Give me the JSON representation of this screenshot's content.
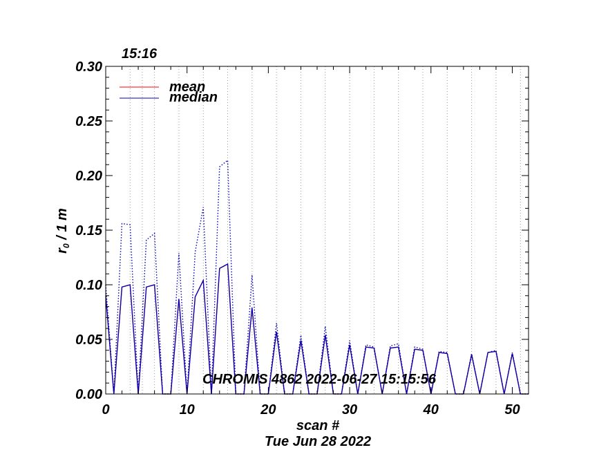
{
  "chart_data": {
    "type": "line",
    "corner_label": "15:16",
    "xlabel": "scan #",
    "date_label": "Tue Jun 28 2022",
    "ylabel_main": "r",
    "ylabel_sub": "0",
    "ylabel_rest": " / 1 m",
    "annotation": "CHROMIS 4862 2022-06-27 15:15:56",
    "xlim": [
      0,
      52
    ],
    "ylim": [
      0,
      0.3
    ],
    "xticks": [
      0,
      10,
      20,
      30,
      40,
      50
    ],
    "xtick_labels": [
      "0",
      "10",
      "20",
      "30",
      "40",
      "50"
    ],
    "yticks": [
      0,
      0.05,
      0.1,
      0.15,
      0.2,
      0.25,
      0.3
    ],
    "ytick_labels": [
      "0.00",
      "0.05",
      "0.10",
      "0.15",
      "0.20",
      "0.25",
      "0.30"
    ],
    "vgrid_x": [
      3,
      4.5,
      6,
      9,
      12,
      15,
      18,
      21,
      24,
      27,
      30,
      33,
      36,
      39,
      42,
      45,
      48,
      51
    ],
    "legend_position": "top-left",
    "legend": [
      {
        "name": "mean",
        "color": "#ff0000"
      },
      {
        "name": "median",
        "color": "#0000b4"
      }
    ],
    "series": [
      {
        "name": "mean",
        "color": "#ff0000",
        "x": [
          0,
          1,
          2,
          3,
          4,
          5,
          6,
          7,
          8,
          9,
          10,
          11,
          12,
          13,
          14,
          15,
          16,
          17,
          18,
          19,
          20,
          21,
          22,
          23,
          24,
          25,
          26,
          27,
          28,
          29,
          30,
          31,
          32,
          33,
          34,
          35,
          36,
          37,
          38,
          39,
          40,
          41,
          42,
          43,
          44,
          45,
          46,
          47,
          48,
          49,
          50,
          51,
          52
        ],
        "values": [
          0.09,
          0,
          0.098,
          0.1,
          0,
          0.098,
          0.1,
          0,
          0,
          0.087,
          0,
          0.089,
          0.104,
          0,
          0.115,
          0.119,
          0,
          0,
          0.079,
          0,
          0,
          0.057,
          0,
          0,
          0.049,
          0,
          0,
          0.054,
          0,
          0,
          0.045,
          0,
          0.043,
          0.042,
          0,
          0.042,
          0.043,
          0,
          0.041,
          0.04,
          0,
          0.038,
          0.037,
          0,
          0,
          0.036,
          0,
          0.038,
          0.039,
          0,
          0.037,
          0,
          0
        ]
      },
      {
        "name": "median",
        "color": "#0000b4",
        "x": [
          0,
          1,
          2,
          3,
          4,
          5,
          6,
          7,
          8,
          9,
          10,
          11,
          12,
          13,
          14,
          15,
          16,
          17,
          18,
          19,
          20,
          21,
          22,
          23,
          24,
          25,
          26,
          27,
          28,
          29,
          30,
          31,
          32,
          33,
          34,
          35,
          36,
          37,
          38,
          39,
          40,
          41,
          42,
          43,
          44,
          45,
          46,
          47,
          48,
          49,
          50,
          51,
          52
        ],
        "values": [
          0.09,
          0,
          0.098,
          0.1,
          0,
          0.098,
          0.1,
          0,
          0,
          0.087,
          0,
          0.089,
          0.104,
          0,
          0.115,
          0.119,
          0,
          0,
          0.079,
          0,
          0,
          0.057,
          0,
          0,
          0.049,
          0,
          0,
          0.054,
          0,
          0,
          0.045,
          0,
          0.043,
          0.042,
          0,
          0.042,
          0.043,
          0,
          0.041,
          0.04,
          0,
          0.038,
          0.037,
          0,
          0,
          0.036,
          0,
          0.038,
          0.039,
          0,
          0.037,
          0,
          0
        ]
      },
      {
        "name": "upper-envelope",
        "color": "#0000b4",
        "style": "dotted",
        "x": [
          0,
          1,
          2,
          3,
          4,
          5,
          6,
          7,
          8,
          9,
          10,
          11,
          12,
          13,
          14,
          15,
          16,
          17,
          18,
          19,
          20,
          21,
          22,
          23,
          24,
          25,
          26,
          27,
          28,
          29,
          30,
          31,
          32,
          33,
          34,
          35,
          36,
          37,
          38,
          39,
          40,
          41,
          42,
          43,
          44,
          45,
          46,
          47,
          48,
          49,
          50,
          51,
          52
        ],
        "values": [
          0.1,
          0,
          0.156,
          0.155,
          0,
          0.141,
          0.147,
          0,
          0,
          0.129,
          0,
          0.13,
          0.171,
          0,
          0.208,
          0.214,
          0,
          0,
          0.109,
          0,
          0,
          0.065,
          0,
          0,
          0.054,
          0,
          0,
          0.062,
          0,
          0,
          0.049,
          0,
          0.045,
          0.043,
          0,
          0.044,
          0.046,
          0,
          0.043,
          0.041,
          0,
          0.039,
          0.038,
          0,
          0,
          0.037,
          0,
          0.038,
          0.04,
          0,
          0.038,
          0,
          0
        ]
      }
    ]
  }
}
